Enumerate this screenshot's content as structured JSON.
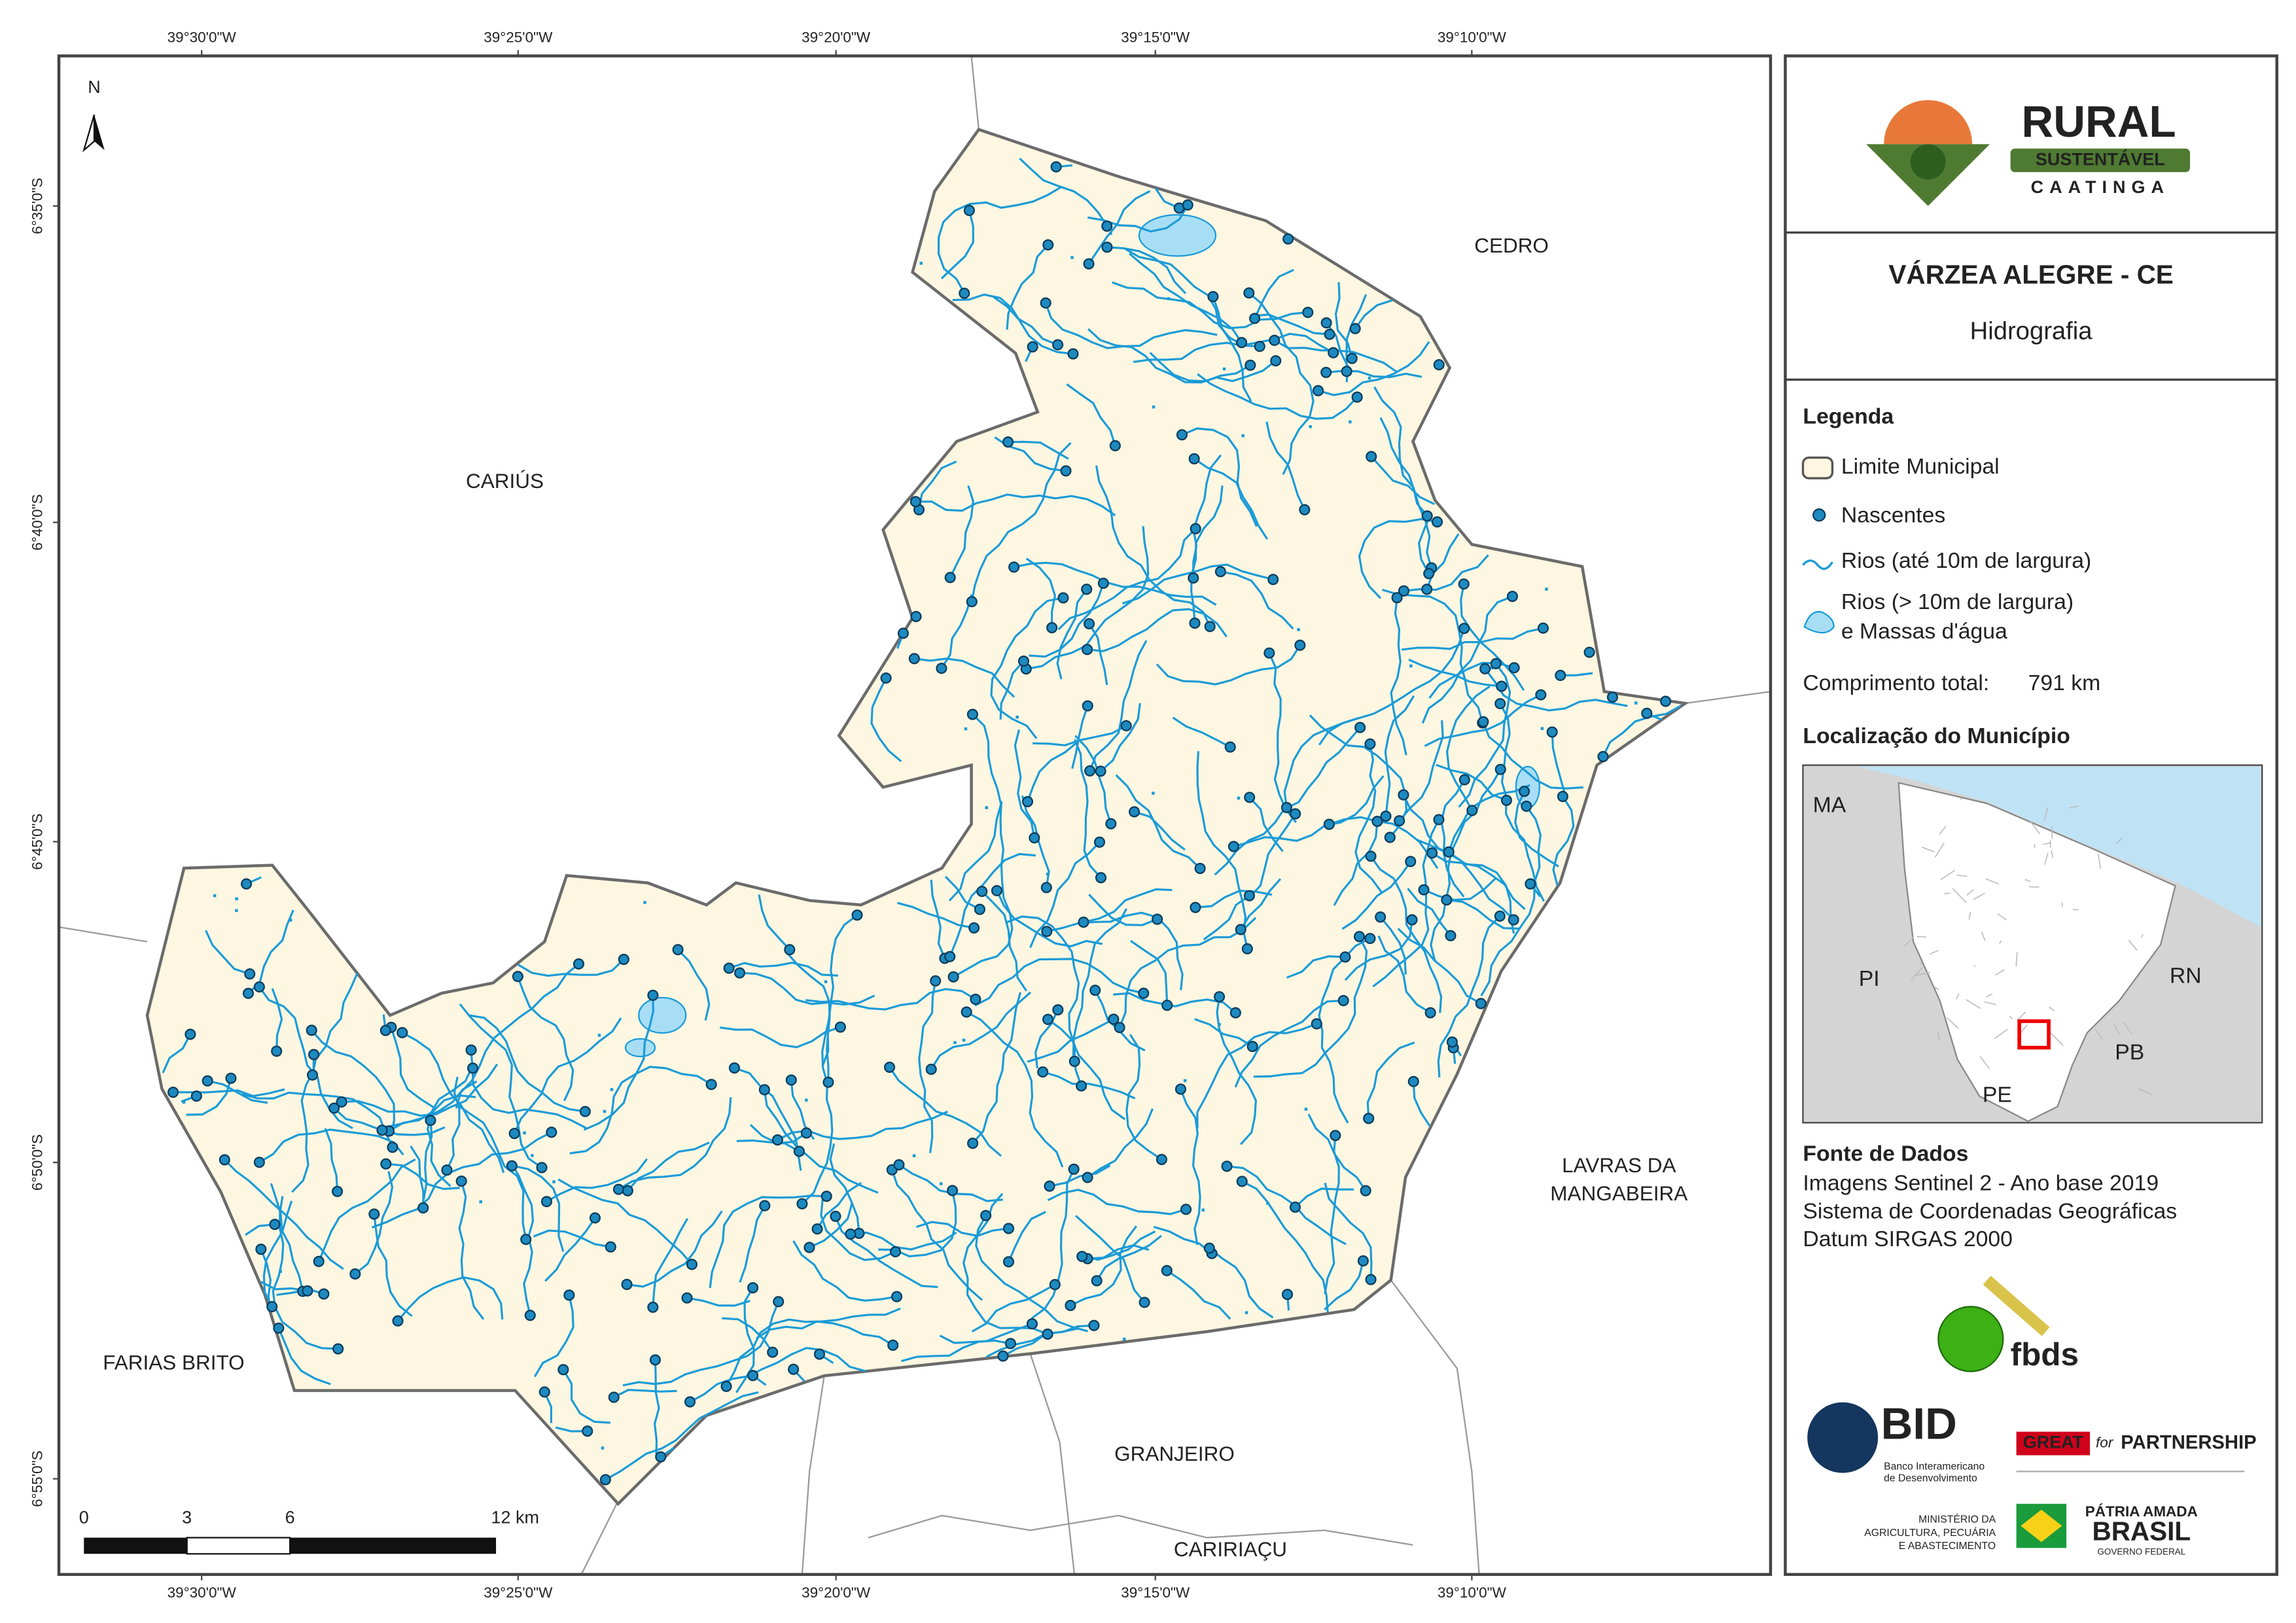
{
  "map": {
    "graticule": {
      "longitudes": [
        "39°30'0\"W",
        "39°25'0\"W",
        "39°20'0\"W",
        "39°15'0\"W",
        "39°10'0\"W"
      ],
      "latitudes": [
        "6°35'0\"S",
        "6°40'0\"S",
        "6°45'0\"S",
        "6°50'0\"S",
        "6°55'0\"S"
      ]
    },
    "north": "N",
    "places": [
      [
        "CEDRO"
      ],
      [
        "CARIÚS"
      ],
      [
        "LAVRAS DA",
        "MANGABEIRA"
      ],
      [
        "FARIAS BRITO"
      ],
      [
        "GRANJEIRO"
      ],
      [
        "CARIRIAÇU"
      ]
    ],
    "scale_bar": [
      "0",
      "3",
      "6",
      "12 km"
    ]
  },
  "panel": {
    "logo": {
      "title": "RURAL",
      "subtitle": "SUSTENTÁVEL",
      "tagline": "CAATINGA"
    },
    "title": "VÁRZEA ALEGRE - CE",
    "subtitle": "Hidrografia",
    "legend": {
      "heading": "Legenda",
      "items": [
        [
          "Limite Municipal"
        ],
        [
          "Nascentes"
        ],
        [
          "Rios (até 10m de largura)"
        ],
        [
          "Rios (> 10m de largura)",
          "e Massas d'água"
        ]
      ]
    },
    "total_length": {
      "label": "Comprimento total:",
      "value": "791 km"
    },
    "location": {
      "heading": "Localização do Município",
      "labels": [
        "MA",
        "PI",
        "RN",
        "PB",
        "PE"
      ]
    },
    "sources": {
      "heading": "Fonte de Dados",
      "lines": [
        "Imagens Sentinel 2 - Ano base 2019",
        "Sistema de Coordenadas Geográficas",
        "Datum SIRGAS 2000"
      ]
    },
    "partners": {
      "fbds": "fbds",
      "bid": "BID",
      "bid_name": [
        "Banco Interamericano",
        "de Desenvolvimento"
      ],
      "great": "GREAT",
      "great_for": "for",
      "great_partnership": "PARTNERSHIP",
      "ministry": [
        "MINISTÉRIO DA",
        "AGRICULTURA, PECUÁRIA",
        "E ABASTECIMENTO"
      ],
      "brasil_motto": "PÁTRIA AMADA",
      "brasil": "BRASIL",
      "brasil_gov": "GOVERNO FEDERAL"
    }
  }
}
